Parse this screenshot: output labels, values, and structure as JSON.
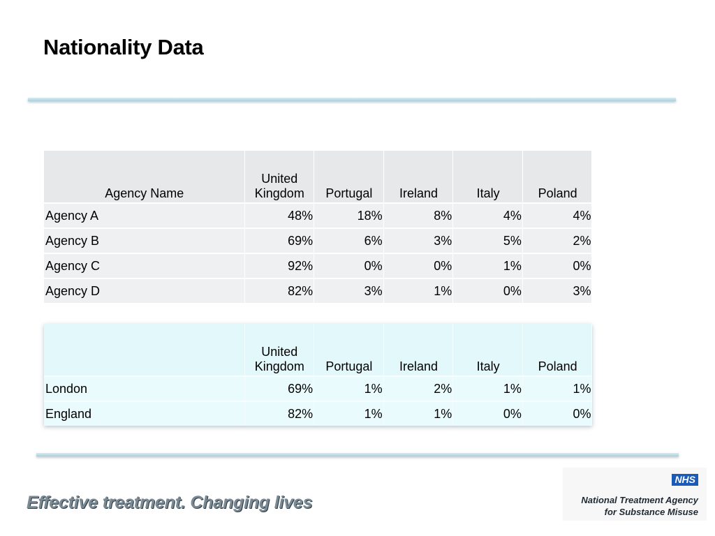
{
  "title": "Nationality Data",
  "agency_table": {
    "headers": [
      "Agency Name",
      "United Kingdom",
      "Portugal",
      "Ireland",
      "Italy",
      "Poland"
    ],
    "rows": [
      [
        "Agency A",
        "48%",
        "18%",
        "8%",
        "4%",
        "4%"
      ],
      [
        "Agency B",
        "69%",
        "6%",
        "3%",
        "5%",
        "2%"
      ],
      [
        "Agency C",
        "92%",
        "0%",
        "0%",
        "1%",
        "0%"
      ],
      [
        "Agency D",
        "82%",
        "3%",
        "1%",
        "0%",
        "3%"
      ]
    ]
  },
  "region_table": {
    "headers": [
      "",
      "United Kingdom",
      "Portugal",
      "Ireland",
      "Italy",
      "Poland"
    ],
    "rows": [
      [
        "London",
        "69%",
        "1%",
        "2%",
        "1%",
        "1%"
      ],
      [
        "England",
        "82%",
        "1%",
        "1%",
        "0%",
        "0%"
      ]
    ]
  },
  "footer": {
    "tagline": "Effective treatment. Changing lives",
    "logo_badge": "NHS",
    "org_line1": "National Treatment Agency",
    "org_line2": "for Substance Misuse"
  },
  "colors": {
    "rule": "#a9d0dc",
    "agency_header_bg": "#e6e8ea",
    "region_header_bg": "#e2f8fb",
    "nhs_blue": "#1a5ab8"
  }
}
